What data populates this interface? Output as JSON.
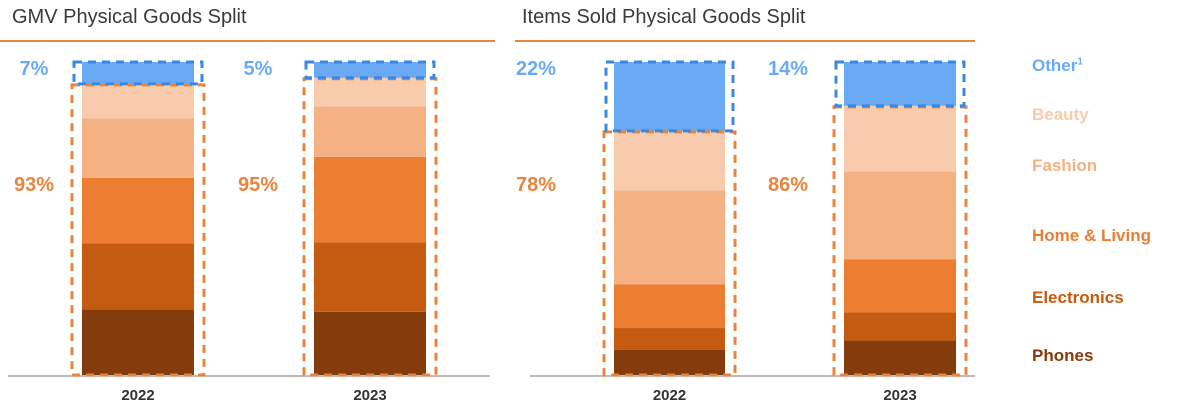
{
  "colors": {
    "Phones": "#843c0c",
    "Electronics": "#c55a11",
    "Home & Living": "#ed7d31",
    "Fashion": "#f4b183",
    "Beauty": "#f8cbad",
    "Other": "#6aaaf5",
    "axis": "#a6a6a6",
    "physical_outline": "#e9843e",
    "other_outline": "#3b88e0",
    "physical_label": "#e9843e",
    "other_label": "#6aaaf5"
  },
  "legend": [
    {
      "label": "Other",
      "superscript": "1",
      "color": "#6aaaf5"
    },
    {
      "label": "Beauty",
      "superscript": "",
      "color": "#f8cbad"
    },
    {
      "label": "Fashion",
      "superscript": "",
      "color": "#f4b183"
    },
    {
      "label": "Home & Living",
      "superscript": "",
      "color": "#ed7d31"
    },
    {
      "label": "Electronics",
      "superscript": "",
      "color": "#c55a11"
    },
    {
      "label": "Phones",
      "superscript": "",
      "color": "#843c0c"
    }
  ],
  "chart_data": [
    {
      "type": "bar",
      "stacked": true,
      "title": "GMV Physical Goods Split",
      "categories": [
        "2022",
        "2023"
      ],
      "ylim": [
        0,
        100
      ],
      "series": [
        {
          "name": "Phones",
          "values": [
            21,
            20
          ]
        },
        {
          "name": "Electronics",
          "values": [
            21,
            22
          ]
        },
        {
          "name": "Home & Living",
          "values": [
            21,
            27
          ]
        },
        {
          "name": "Fashion",
          "values": [
            19,
            16
          ]
        },
        {
          "name": "Beauty",
          "values": [
            11,
            9
          ]
        },
        {
          "name": "Other",
          "values": [
            7,
            5
          ]
        }
      ],
      "group_labels": {
        "physical": [
          "93%",
          "95%"
        ],
        "other": [
          "7%",
          "5%"
        ]
      }
    },
    {
      "type": "bar",
      "stacked": true,
      "title": "Items Sold Physical Goods Split",
      "categories": [
        "2022",
        "2023"
      ],
      "ylim": [
        0,
        100
      ],
      "series": [
        {
          "name": "Phones",
          "values": [
            8,
            11
          ]
        },
        {
          "name": "Electronics",
          "values": [
            7,
            9
          ]
        },
        {
          "name": "Home & Living",
          "values": [
            14,
            17
          ]
        },
        {
          "name": "Fashion",
          "values": [
            30,
            28
          ]
        },
        {
          "name": "Beauty",
          "values": [
            19,
            21
          ]
        },
        {
          "name": "Other",
          "values": [
            22,
            14
          ]
        }
      ],
      "group_labels": {
        "physical": [
          "78%",
          "86%"
        ],
        "other": [
          "22%",
          "14%"
        ]
      }
    }
  ]
}
